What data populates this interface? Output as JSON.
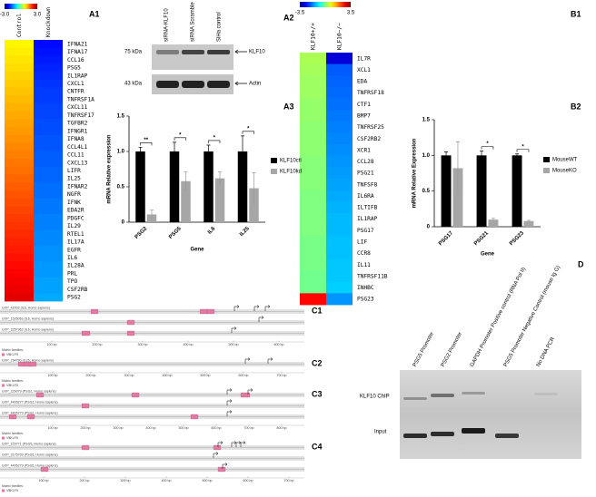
{
  "panel_labels": [
    "A1",
    "A2",
    "A3",
    "B1",
    "B2",
    "C1",
    "C2",
    "C3",
    "C4",
    "D"
  ],
  "chart_data": [
    {
      "type": "heatmap",
      "columns": [
        "Control",
        "Knockdown"
      ],
      "rows": [
        "IFNA21",
        "IFNA17",
        "CCL16",
        "PSG5",
        "IL1RAP",
        "CXCL1",
        "CNTFR",
        "TNFRSF1A",
        "CXCL11",
        "TNFRSF17",
        "TGFBR2",
        "IFNGR1",
        "IFNA8",
        "CCL4L1",
        "CCL11",
        "CXCL13",
        "LIFR",
        "IL25",
        "IFNAR2",
        "NGFR",
        "IFNK",
        "EDA2R",
        "PDGFC",
        "IL29",
        "RTEL1",
        "IL17A",
        "EGFR",
        "IL6",
        "IL28A",
        "PRL",
        "TPO",
        "CSF2RB",
        "PSG2"
      ],
      "values": [
        [
          0.8,
          0.85,
          0.9,
          0.95,
          1.0,
          1.05,
          1.1,
          1.15,
          1.2,
          1.25,
          1.3,
          1.35,
          1.4,
          1.45,
          1.5,
          1.55,
          1.6,
          1.65,
          1.7,
          1.75,
          1.8,
          1.85,
          1.9,
          1.95,
          2.0,
          2.05,
          2.1,
          2.15,
          2.2,
          2.25,
          2.3,
          2.35,
          2.4
        ],
        [
          -2.2,
          -2.15,
          -2.1,
          -2.05,
          -2.0,
          -1.95,
          -1.9,
          -1.9,
          -1.85,
          -1.85,
          -1.8,
          -1.8,
          -1.75,
          -1.75,
          -1.7,
          -1.7,
          -1.65,
          -1.65,
          -1.6,
          -1.6,
          -1.55,
          -1.55,
          -1.5,
          -1.5,
          -1.45,
          -1.45,
          -1.4,
          -1.4,
          -1.35,
          -1.35,
          -1.3,
          -1.3,
          -1.25
        ]
      ],
      "zlim": [
        -3,
        3
      ],
      "zticks": [
        {
          "value": -3,
          "label": "-3.0"
        },
        {
          "value": 3,
          "label": "3.0"
        }
      ]
    },
    {
      "type": "bar",
      "ylabel": "mRNA Relative expression",
      "xlabel": "Gene",
      "categories": [
        "PSG2",
        "PSG5",
        "IL6",
        "IL25"
      ],
      "series": [
        {
          "name": "KLF10ctl",
          "color": "#000000",
          "values": [
            1,
            1,
            1,
            1
          ],
          "errors": [
            0.06,
            0.13,
            0.09,
            0.22
          ]
        },
        {
          "name": "KLF10kd",
          "color": "#a6a6a6",
          "values": [
            0.11,
            0.58,
            0.62,
            0.48
          ],
          "errors": [
            0.06,
            0.13,
            0.09,
            0.22
          ]
        }
      ],
      "annotations": [
        "**",
        "*",
        "*",
        "*"
      ],
      "ylim": [
        0,
        1.5
      ],
      "yticks": [
        0,
        0.5,
        {
          "value": 1,
          "label": "1.0"
        },
        1.5
      ],
      "legend": "right"
    },
    {
      "type": "heatmap",
      "columns": [
        "KLF10+/+",
        "KLF10−/−"
      ],
      "rows": [
        "IL7R",
        "XCL1",
        "EDA",
        "TNFRSF18",
        "CTF1",
        "BMP7",
        "TNFRSF25",
        "CSF2RB2",
        "XCR1",
        "CCL28",
        "PSG21",
        "TNFSF8",
        "IL6RA",
        "ILTIFB",
        "IL1RAP",
        "PSG17",
        "LIF",
        "CCR8",
        "IL11",
        "TNFRSF11B",
        "INHBC",
        "PSG23"
      ],
      "values": [
        [
          0.3,
          0.25,
          0.2,
          0.2,
          0.15,
          0.15,
          0.1,
          0.1,
          0.1,
          0.05,
          0.05,
          0.05,
          0,
          0,
          0,
          0,
          -0.05,
          -0.05,
          -0.05,
          -0.1,
          -0.1,
          2.6
        ],
        [
          -2.9,
          -2.0,
          -1.95,
          -1.9,
          -1.85,
          -1.8,
          -1.75,
          -1.7,
          -1.65,
          -1.6,
          -1.55,
          -1.5,
          -1.45,
          -1.4,
          -1.35,
          -1.35,
          -1.3,
          -1.3,
          -1.25,
          -1.25,
          -1.2,
          -1.6
        ]
      ],
      "zlim": [
        -3.5,
        3.5
      ],
      "zticks": [
        -3.5,
        3.5
      ]
    },
    {
      "type": "bar",
      "ylabel": "mRNA Relative Expression",
      "xlabel": "Gene",
      "categories": [
        "PSG17",
        "PSG21",
        "PSG23"
      ],
      "series": [
        {
          "name": "MouseWT",
          "color": "#000000",
          "values": [
            1,
            1,
            1
          ],
          "errors": [
            0.05,
            0.06,
            0.02
          ]
        },
        {
          "name": "MouseKO",
          "color": "#a6a6a6",
          "values": [
            0.82,
            0.1,
            0.08
          ],
          "errors": [
            0.37,
            0.02,
            0.01
          ]
        }
      ],
      "annotations": [
        null,
        "*",
        "*"
      ],
      "ylim": [
        0,
        1.5
      ],
      "yticks": [
        0,
        0.5,
        {
          "value": 1,
          "label": "1.0"
        },
        1.5
      ],
      "legend": "right"
    }
  ],
  "blot": {
    "lanes": [
      "siRNA-KLF10",
      "siRNA Scramble",
      "SiHa control"
    ],
    "markers": [
      "75 kDa",
      "43 kDa"
    ],
    "proteins": [
      "KLF10",
      "Actin"
    ]
  },
  "promoters": [
    {
      "tracks": [
        "GXP_42003 (IL6, Homo sapiens)",
        "GXP_1526063 (IL6, Homo sapiens)",
        "GXP_3257962 (IL6, Homo sapiens)"
      ],
      "ruler": [
        "100 bp",
        "200 bp",
        "300 bp",
        "400 bp",
        "500 bp",
        "600 bp"
      ],
      "legend_title": "Matrix families:",
      "legend_item": "V$KLF5"
    },
    {
      "tracks": [
        "GXP_294790 (IL25, Homo sapiens)"
      ],
      "ruler": [
        "100 bp",
        "200 bp",
        "300 bp",
        "400 bp",
        "500 bp",
        "600 bp",
        "700 bp"
      ],
      "legend_title": "Matrix families:",
      "legend_item": "V$KLF5"
    },
    {
      "tracks": [
        "GXP_229079 (PSG2, Homo sapiens)",
        "GXP_4405277 (PSG2, Homo sapiens)",
        "GXP_4405279 (PSG2, Homo sapiens)"
      ],
      "ruler": [
        "100 bp",
        "200 bp",
        "300 bp",
        "400 bp",
        "500 bp",
        "600 bp",
        "700 bp",
        "800 bp"
      ],
      "legend_title": "Matrix families:",
      "legend_item": "V$KLF5"
    },
    {
      "tracks": [
        "GXP_229771 (PSG5, Homo sapiens)",
        "GXP_3175709 (PSG5, Homo sapiens)",
        "GXP_4405279 (PSG5, Homo sapiens)"
      ],
      "ruler": [
        "100 bp",
        "200 bp",
        "300 bp",
        "400 bp",
        "500 bp",
        "600 bp",
        "700 bp"
      ],
      "legend_title": "Matrix families:",
      "legend_item": "V$KLF5"
    }
  ],
  "chip": {
    "lanes": [
      "PSG5 Promoter",
      "PSG2 Promoter",
      "GAPDH Promoter Positive control (RNA Pol II)",
      "PSG5 Promoter Negative Control (mouse Ig G)",
      "No DNA PCR"
    ],
    "rows": [
      "KLF10 ChIP",
      "Input"
    ]
  }
}
